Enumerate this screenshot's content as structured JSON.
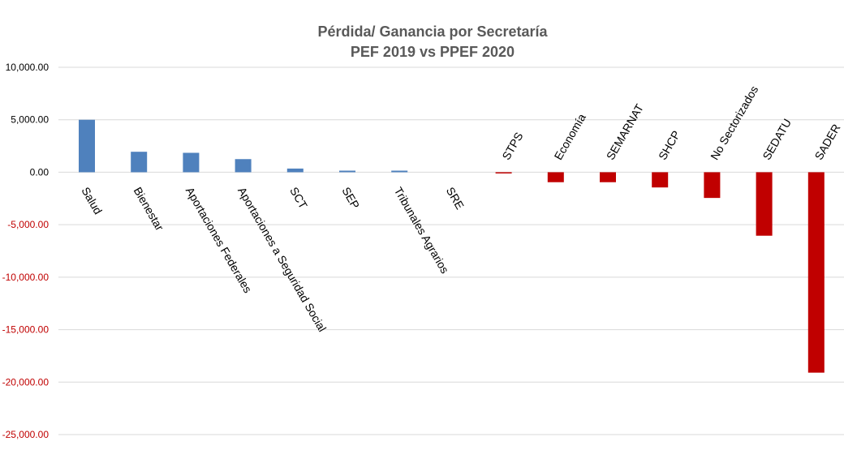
{
  "chart_data": {
    "type": "bar",
    "title": "Pérdida/ Ganancia por Secretaría",
    "subtitle": "PEF 2019 vs PPEF 2020",
    "xlabel": "",
    "ylabel": "",
    "ylim": [
      -25000,
      10000
    ],
    "yticks": [
      10000,
      5000,
      0,
      -5000,
      -10000,
      -15000,
      -20000,
      -25000
    ],
    "ytick_labels": [
      "10,000.00",
      "5,000.00",
      "0.00",
      "-5,000.00",
      "-10,000.00",
      "-15,000.00",
      "-20,000.00",
      "-25,000.00"
    ],
    "grid": true,
    "legend": "none",
    "categories": [
      "Salud",
      "Bienestar",
      "Aportaciones Federales",
      "Aportaciones a Seguridad Social",
      "SCT",
      "SEP",
      "Tribunales Agrarios",
      "SRE",
      "STPS",
      "Economía",
      "SEMARNAT",
      "SHCP",
      "No Sectorizados",
      "SEDATU",
      "SADER"
    ],
    "values": [
      5000,
      1950,
      1850,
      1250,
      350,
      150,
      150,
      0,
      -100,
      -950,
      -950,
      -1450,
      -2450,
      -6050,
      -19100
    ],
    "colors": {
      "positive": "#4f81bd",
      "negative": "#c00000",
      "positive_tick_text": "#000000",
      "negative_tick_text": "#c00000",
      "title_text": "#595959"
    }
  }
}
